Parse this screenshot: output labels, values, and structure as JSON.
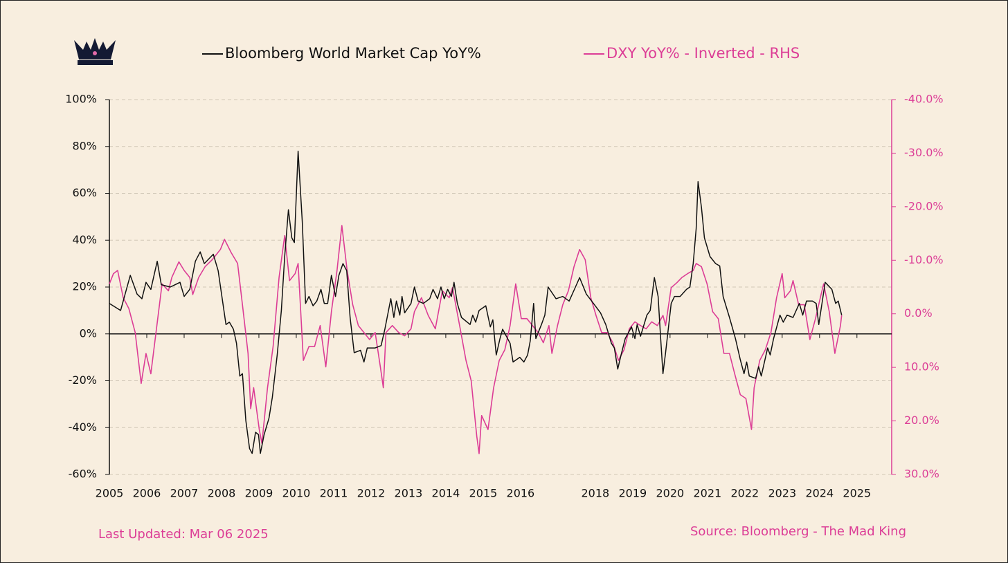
{
  "chart_data": {
    "type": "line",
    "xlim": [
      2005,
      2025.93
    ],
    "xticks": [
      2005,
      2006,
      2007,
      2008,
      2009,
      2010,
      2011,
      2012,
      2013,
      2014,
      2015,
      2016,
      2018,
      2019,
      2020,
      2021,
      2022,
      2023,
      2024,
      2025
    ],
    "ylim": [
      -60,
      100
    ],
    "yticks": [
      {
        "value": -60,
        "label": "-60%"
      },
      {
        "value": -40,
        "label": "-40%"
      },
      {
        "value": -20,
        "label": "-20%"
      },
      {
        "value": 0,
        "label": "0%"
      },
      {
        "value": 20,
        "label": "20%"
      },
      {
        "value": 40,
        "label": "40%"
      },
      {
        "value": 60,
        "label": "60%"
      },
      {
        "value": 80,
        "label": "80%"
      },
      {
        "value": 100,
        "label": "100%"
      }
    ],
    "y2lim": [
      -40,
      30
    ],
    "y2_inverted": true,
    "y2ticks": [
      {
        "value": -40,
        "label": "-40.0%"
      },
      {
        "value": -30,
        "label": "-30.0%"
      },
      {
        "value": -20,
        "label": "-20.0%"
      },
      {
        "value": -10,
        "label": "-10.0%"
      },
      {
        "value": 0,
        "label": "0.0%"
      },
      {
        "value": 10,
        "label": "10.0%"
      },
      {
        "value": 20,
        "label": "20.0%"
      },
      {
        "value": 30,
        "label": "30.0%"
      }
    ],
    "grid": true,
    "legend": "top",
    "footnote": "Last Updated: Mar 06 2025",
    "source": "Source: Bloomberg - The Mad King",
    "series": [
      {
        "name": "Bloomberg World Market Cap YoY%",
        "color": "#111111",
        "x": [
          2005.0,
          2005.3,
          2005.56,
          2005.74,
          2005.87,
          2005.98,
          2006.11,
          2006.28,
          2006.39,
          2006.63,
          2006.89,
          2007.0,
          2007.15,
          2007.3,
          2007.43,
          2007.54,
          2007.78,
          2007.91,
          2008.01,
          2008.12,
          2008.21,
          2008.32,
          2008.4,
          2008.49,
          2008.56,
          2008.65,
          2008.75,
          2008.82,
          2008.91,
          2008.99,
          2009.04,
          2009.14,
          2009.27,
          2009.36,
          2009.49,
          2009.6,
          2009.69,
          2009.79,
          2009.88,
          2009.95,
          2010.05,
          2010.16,
          2010.25,
          2010.34,
          2010.45,
          2010.55,
          2010.66,
          2010.75,
          2010.84,
          2010.94,
          2011.05,
          2011.14,
          2011.25,
          2011.35,
          2011.44,
          2011.55,
          2011.72,
          2011.81,
          2011.9,
          2012.11,
          2012.27,
          2012.37,
          2012.53,
          2012.61,
          2012.68,
          2012.77,
          2012.83,
          2012.9,
          2013.07,
          2013.16,
          2013.26,
          2013.4,
          2013.57,
          2013.66,
          2013.78,
          2013.87,
          2013.96,
          2014.05,
          2014.15,
          2014.22,
          2014.31,
          2014.42,
          2014.65,
          2014.72,
          2014.8,
          2014.89,
          2015.07,
          2015.19,
          2015.26,
          2015.35,
          2015.45,
          2015.52,
          2015.72,
          2015.8,
          2015.98,
          2016.09,
          2016.19,
          2016.26,
          2016.35,
          2016.41,
          2016.56,
          2016.65,
          2016.74,
          2016.95,
          2017.13,
          2017.3,
          2017.47,
          2017.58,
          2017.76,
          2017.95,
          2018.14,
          2018.28,
          2018.43,
          2018.51,
          2018.6,
          2018.69,
          2018.8,
          2018.97,
          2019.06,
          2019.12,
          2019.21,
          2019.38,
          2019.47,
          2019.58,
          2019.68,
          2019.75,
          2019.81,
          2019.88,
          2020.03,
          2020.12,
          2020.27,
          2020.44,
          2020.53,
          2020.62,
          2020.7,
          2020.75,
          2020.84,
          2020.92,
          2021.07,
          2021.22,
          2021.33,
          2021.42,
          2021.59,
          2021.75,
          2021.88,
          2021.98,
          2022.05,
          2022.12,
          2022.29,
          2022.37,
          2022.44,
          2022.61,
          2022.68,
          2022.77,
          2022.94,
          2023.03,
          2023.13,
          2023.29,
          2023.46,
          2023.55,
          2023.65,
          2023.81,
          2023.91,
          2023.98,
          2024.15,
          2024.33,
          2024.43,
          2024.5,
          2024.59
        ],
        "values": [
          13,
          10,
          25,
          17,
          15,
          22,
          19,
          31,
          21,
          20,
          22,
          16,
          19,
          31,
          35,
          30,
          34,
          27,
          16,
          4,
          5,
          2,
          -4,
          -18,
          -17,
          -37,
          -49,
          -51,
          -42,
          -43,
          -51,
          -43,
          -36,
          -27,
          -9,
          10,
          33,
          53,
          41,
          39,
          78,
          48,
          13,
          16,
          12,
          14,
          19,
          13,
          13,
          25,
          16,
          25,
          30,
          27,
          7,
          -8,
          -7,
          -12,
          -6,
          -6,
          -5,
          2,
          15,
          7,
          14,
          8,
          16,
          9,
          13,
          20,
          14,
          13,
          15,
          19,
          15,
          20,
          15,
          19,
          16,
          22,
          13,
          7,
          4,
          8,
          5,
          10,
          12,
          3,
          6,
          -9,
          -2,
          2,
          -4,
          -12,
          -10,
          -12,
          -9,
          -3,
          13,
          -2,
          4,
          8,
          20,
          15,
          16,
          14,
          20,
          24,
          17,
          13,
          9,
          4,
          -4,
          -6,
          -15,
          -9,
          -2,
          3,
          -2,
          4,
          -1,
          8,
          10,
          24,
          16,
          -2,
          -17,
          -8,
          13,
          16,
          16,
          19,
          20,
          30,
          45,
          65,
          54,
          41,
          33,
          30,
          29,
          16,
          7,
          -2,
          -11,
          -17,
          -12,
          -18,
          -19,
          -14,
          -18,
          -6,
          -9,
          -2,
          8,
          5,
          8,
          7,
          13,
          8,
          14,
          14,
          13,
          4,
          22,
          19,
          13,
          14,
          8
        ]
      },
      {
        "name": "DXY YoY% - Inverted - RHS",
        "color": "#dc3d96",
        "axis": "y2",
        "x": [
          2005.0,
          2005.11,
          2005.22,
          2005.37,
          2005.52,
          2005.69,
          2005.85,
          2005.98,
          2006.11,
          2006.26,
          2006.41,
          2006.58,
          2006.67,
          2006.86,
          2007.0,
          2007.15,
          2007.23,
          2007.39,
          2007.56,
          2007.75,
          2007.97,
          2008.08,
          2008.26,
          2008.43,
          2008.56,
          2008.71,
          2008.78,
          2008.86,
          2009.01,
          2009.08,
          2009.23,
          2009.38,
          2009.54,
          2009.69,
          2009.82,
          2009.97,
          2010.05,
          2010.19,
          2010.34,
          2010.49,
          2010.64,
          2010.79,
          2010.94,
          2011.09,
          2011.22,
          2011.36,
          2011.51,
          2011.66,
          2011.81,
          2011.96,
          2012.11,
          2012.25,
          2012.33,
          2012.4,
          2012.57,
          2012.74,
          2012.9,
          2013.07,
          2013.16,
          2013.35,
          2013.53,
          2013.72,
          2013.91,
          2014.09,
          2014.18,
          2014.37,
          2014.54,
          2014.68,
          2014.83,
          2014.89,
          2014.96,
          2015.13,
          2015.28,
          2015.43,
          2015.58,
          2015.72,
          2015.87,
          2016.02,
          2016.17,
          2016.32,
          2016.47,
          2016.61,
          2016.76,
          2016.84,
          2016.99,
          2017.13,
          2017.28,
          2017.43,
          2017.58,
          2017.73,
          2017.88,
          2018.02,
          2018.17,
          2018.32,
          2018.47,
          2018.62,
          2018.77,
          2018.91,
          2019.06,
          2019.21,
          2019.36,
          2019.51,
          2019.66,
          2019.81,
          2019.88,
          2020.03,
          2020.18,
          2020.32,
          2020.47,
          2020.62,
          2020.7,
          2020.84,
          2020.99,
          2021.14,
          2021.29,
          2021.44,
          2021.59,
          2021.73,
          2021.88,
          2022.03,
          2022.18,
          2022.25,
          2022.4,
          2022.55,
          2022.7,
          2022.85,
          2023.0,
          2023.07,
          2023.22,
          2023.29,
          2023.44,
          2023.59,
          2023.74,
          2023.89,
          2024.04,
          2024.11,
          2024.26,
          2024.41,
          2024.56,
          2024.59
        ],
        "values": [
          -5.6,
          -7.5,
          -8.1,
          -3.0,
          -1.0,
          3.5,
          13.0,
          7.4,
          11.2,
          2.8,
          -5.6,
          -4.3,
          -6.8,
          -9.7,
          -8.1,
          -6.8,
          -3.6,
          -6.8,
          -8.8,
          -10.1,
          -12.0,
          -13.9,
          -11.4,
          -9.4,
          -1.7,
          7.4,
          17.7,
          13.8,
          21.6,
          24.2,
          13.8,
          6.1,
          -6.8,
          -14.6,
          -6.2,
          -7.5,
          -9.4,
          8.7,
          6.1,
          6.1,
          2.2,
          9.9,
          -0.4,
          -8.1,
          -16.5,
          -8.1,
          -1.7,
          2.2,
          3.5,
          4.8,
          3.5,
          9.9,
          13.8,
          3.5,
          2.2,
          3.5,
          4.1,
          2.8,
          -0.4,
          -3.0,
          0.3,
          2.8,
          -4.3,
          -3.0,
          -4.9,
          2.2,
          8.7,
          12.5,
          22.9,
          26.1,
          19.0,
          21.6,
          13.8,
          8.7,
          6.7,
          2.2,
          -5.6,
          0.9,
          0.9,
          2.2,
          3.5,
          5.4,
          2.2,
          7.4,
          2.2,
          -1.7,
          -4.3,
          -8.8,
          -12.0,
          -10.1,
          -3.0,
          0.3,
          3.5,
          3.5,
          5.4,
          8.7,
          6.7,
          2.8,
          1.5,
          2.2,
          2.8,
          1.5,
          2.2,
          0.3,
          2.2,
          -4.9,
          -5.8,
          -6.8,
          -7.5,
          -8.1,
          -9.4,
          -8.8,
          -5.6,
          -0.4,
          0.9,
          7.4,
          7.4,
          11.2,
          15.1,
          15.8,
          21.6,
          13.8,
          8.7,
          6.7,
          3.5,
          -3.0,
          -7.5,
          -3.0,
          -4.3,
          -6.2,
          -1.7,
          -1.7,
          4.8,
          0.9,
          -3.6,
          -5.6,
          -0.4,
          7.4,
          2.2,
          0.3
        ]
      }
    ]
  }
}
